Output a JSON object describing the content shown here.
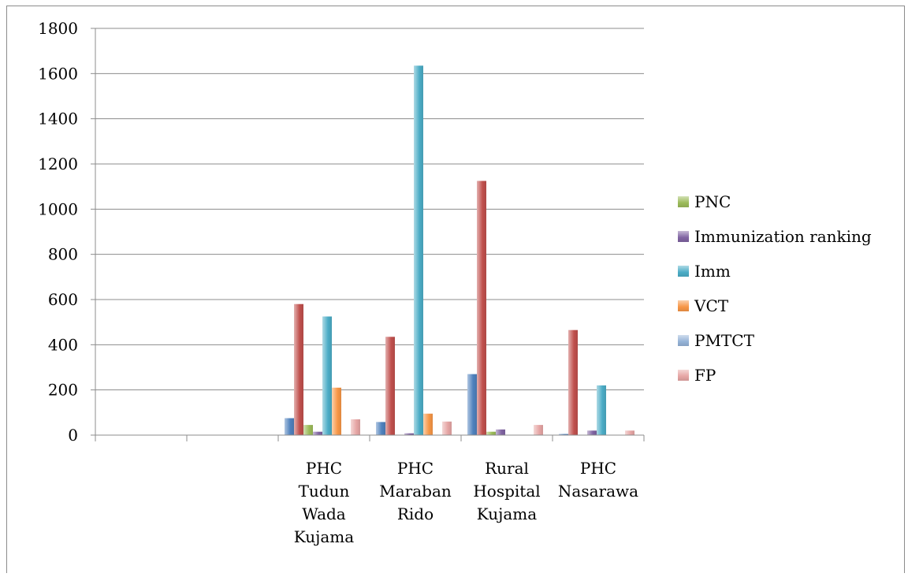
{
  "chart_data": {
    "type": "bar",
    "categories": [
      "",
      "",
      "PHC Tudun Wada Kujama",
      "PHC Maraban Rido",
      "Rural Hospital Kujama",
      "PHC Nasarawa"
    ],
    "category_lines": [
      [],
      [],
      [
        "PHC",
        "Tudun",
        "Wada",
        "Kujama"
      ],
      [
        "PHC",
        "Maraban",
        "Rido"
      ],
      [
        "Rural",
        "Hospital",
        "Kujama"
      ],
      [
        "PHC",
        "Nasarawa"
      ]
    ],
    "series": [
      {
        "name": "PMTCT",
        "values": [
          0,
          0,
          75,
          58,
          270,
          5
        ],
        "color": "#4f81bd"
      },
      {
        "name": "FP",
        "values": [
          0,
          0,
          580,
          435,
          1125,
          465
        ],
        "color": "#c0504d"
      },
      {
        "name": "PNC",
        "values": [
          0,
          0,
          45,
          0,
          15,
          0
        ],
        "color": "#9bbb59"
      },
      {
        "name": "Immunization ranking",
        "values": [
          0,
          0,
          15,
          8,
          25,
          20
        ],
        "color": "#8064a2"
      },
      {
        "name": "Imm",
        "values": [
          0,
          0,
          525,
          1635,
          0,
          220
        ],
        "color": "#4bacc6"
      },
      {
        "name": "VCT",
        "values": [
          0,
          0,
          210,
          95,
          0,
          0
        ],
        "color": "#f79646"
      },
      {
        "name": "PMTCT",
        "values": [
          0,
          0,
          0,
          0,
          0,
          0
        ],
        "color": "#95b3d7"
      },
      {
        "name": "FP",
        "values": [
          0,
          0,
          70,
          60,
          45,
          20
        ],
        "color": "#e6a5a4"
      }
    ],
    "ylim": [
      0,
      1800
    ],
    "yticks": [
      0,
      200,
      400,
      600,
      800,
      1000,
      1200,
      1400,
      1600,
      1800
    ],
    "ytick_labels": [
      "0",
      "200",
      "400",
      "600",
      "800",
      "1000",
      "1200",
      "1400",
      "1600",
      "1800"
    ],
    "legend": {
      "position": "right",
      "entries": [
        {
          "label": "PNC",
          "color": "#9bbb59"
        },
        {
          "label": "Immunization ranking",
          "color": "#8064a2"
        },
        {
          "label": "Imm",
          "color": "#4bacc6"
        },
        {
          "label": "VCT",
          "color": "#f79646"
        },
        {
          "label": "PMTCT",
          "color": "#95b3d7"
        },
        {
          "label": "FP",
          "color": "#e6a5a4"
        }
      ]
    },
    "grid": true
  }
}
